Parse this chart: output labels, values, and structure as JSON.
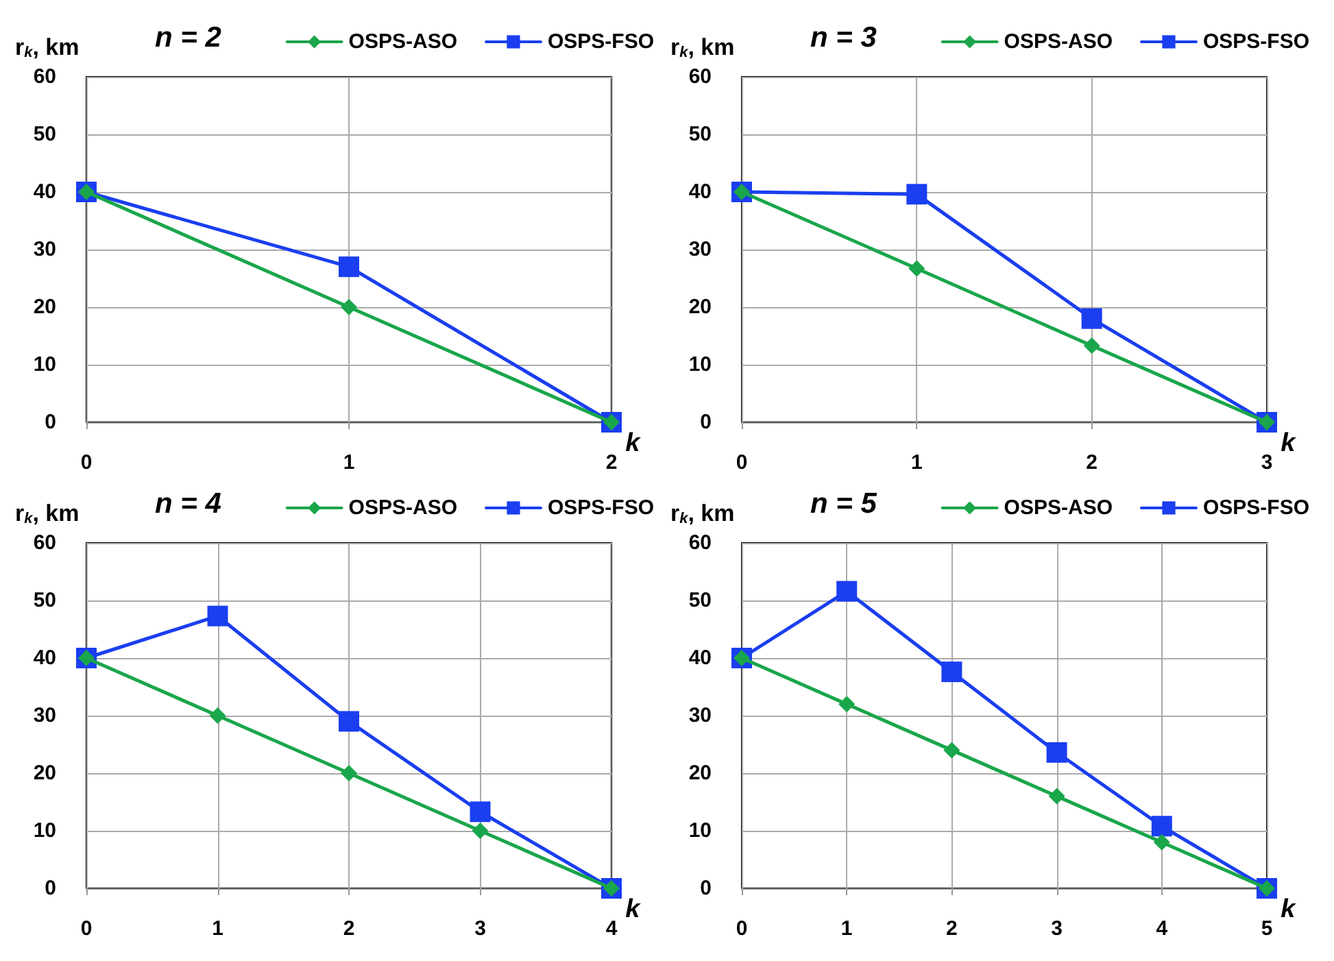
{
  "chart_data": [
    {
      "type": "line",
      "title": "n = 2",
      "ylabel": "r$_{k}$, km",
      "xlabel": "k",
      "x": [
        0,
        1,
        2
      ],
      "xlim": [
        0,
        2
      ],
      "xticks": [
        0,
        1,
        2
      ],
      "ylim": [
        0,
        60
      ],
      "yticks": [
        0,
        10,
        20,
        30,
        40,
        50,
        60
      ],
      "grid": true,
      "legend": "top right",
      "series": [
        {
          "name": "OSPS-ASO",
          "color": "#1aa64a",
          "marker": "diamond",
          "values": [
            40,
            20,
            0
          ]
        },
        {
          "name": "OSPS-FSO",
          "color": "#1a3ef0",
          "marker": "square",
          "values": [
            40,
            27,
            0
          ]
        }
      ]
    },
    {
      "type": "line",
      "title": "n = 3",
      "ylabel": "r$_{k}$, km",
      "xlabel": "k",
      "x": [
        0,
        1,
        2,
        3
      ],
      "xlim": [
        0,
        3
      ],
      "xticks": [
        0,
        1,
        2,
        3
      ],
      "ylim": [
        0,
        60
      ],
      "yticks": [
        0,
        10,
        20,
        30,
        40,
        50,
        60
      ],
      "grid": true,
      "legend": "top right",
      "series": [
        {
          "name": "OSPS-ASO",
          "color": "#1aa64a",
          "marker": "diamond",
          "values": [
            40,
            26.7,
            13.3,
            0
          ]
        },
        {
          "name": "OSPS-FSO",
          "color": "#1a3ef0",
          "marker": "square",
          "values": [
            40,
            39.6,
            18,
            0
          ]
        }
      ]
    },
    {
      "type": "line",
      "title": "n = 4",
      "ylabel": "r$_{k}$, km",
      "xlabel": "k",
      "x": [
        0,
        1,
        2,
        3,
        4
      ],
      "xlim": [
        0,
        4
      ],
      "xticks": [
        0,
        1,
        2,
        3,
        4
      ],
      "ylim": [
        0,
        60
      ],
      "yticks": [
        0,
        10,
        20,
        30,
        40,
        50,
        60
      ],
      "grid": true,
      "legend": "top right",
      "series": [
        {
          "name": "OSPS-ASO",
          "color": "#1aa64a",
          "marker": "diamond",
          "values": [
            40,
            30,
            20,
            10,
            0
          ]
        },
        {
          "name": "OSPS-FSO",
          "color": "#1a3ef0",
          "marker": "square",
          "values": [
            40,
            47.3,
            29,
            13.3,
            0
          ]
        }
      ]
    },
    {
      "type": "line",
      "title": "n = 5",
      "ylabel": "r$_{k}$, km",
      "xlabel": "k",
      "x": [
        0,
        1,
        2,
        3,
        4,
        5
      ],
      "xlim": [
        0,
        5
      ],
      "xticks": [
        0,
        1,
        2,
        3,
        4,
        5
      ],
      "ylim": [
        0,
        60
      ],
      "yticks": [
        0,
        10,
        20,
        30,
        40,
        50,
        60
      ],
      "grid": true,
      "legend": "top right",
      "series": [
        {
          "name": "OSPS-ASO",
          "color": "#1aa64a",
          "marker": "diamond",
          "values": [
            40,
            32,
            24,
            16,
            8,
            0
          ]
        },
        {
          "name": "OSPS-FSO",
          "color": "#1a3ef0",
          "marker": "square",
          "values": [
            40,
            51.6,
            37.6,
            23.6,
            10.8,
            0
          ]
        }
      ]
    }
  ]
}
